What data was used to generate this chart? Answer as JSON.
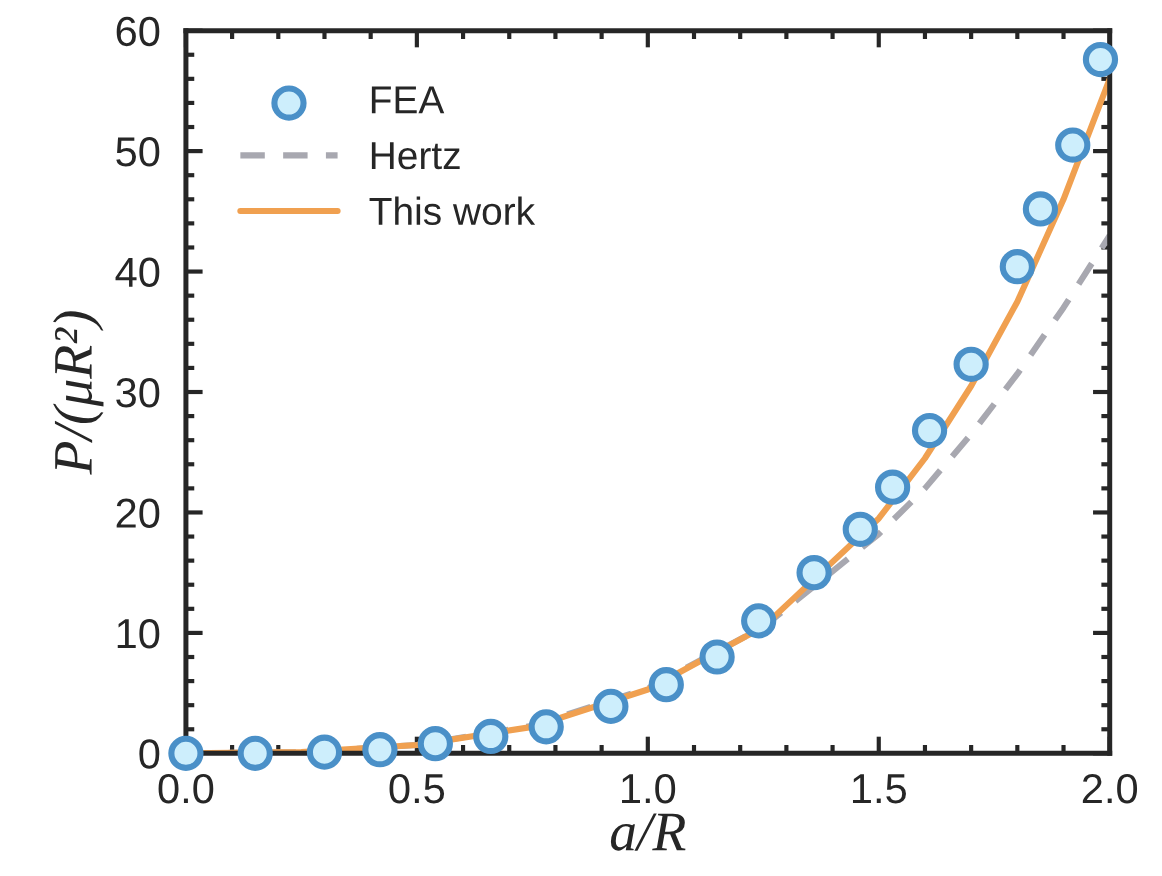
{
  "chart_data": {
    "type": "line",
    "xlabel": "a/R",
    "ylabel": "P/(μR²)",
    "xlim": [
      0,
      2
    ],
    "ylim": [
      0,
      60
    ],
    "xticks": [
      {
        "value": 0,
        "label": "0.0"
      },
      0.5,
      {
        "value": 1,
        "label": "1.0"
      },
      1.5,
      {
        "value": 2,
        "label": "2.0"
      }
    ],
    "yticks": [
      0,
      10,
      20,
      30,
      40,
      50,
      60
    ],
    "grid": false,
    "legend": "top left",
    "series": [
      {
        "name": "FEA",
        "type": "scatter",
        "marker": "circle",
        "color": "#4a90c8",
        "x": [
          0,
          0.15,
          0.3,
          0.42,
          0.54,
          0.66,
          0.78,
          0.92,
          1.04,
          1.15,
          1.24,
          1.36,
          1.46,
          1.53,
          1.61,
          1.7,
          1.8,
          1.85,
          1.92,
          1.98
        ],
        "values": [
          0,
          0,
          0.1,
          0.3,
          0.8,
          1.4,
          2.2,
          3.9,
          5.7,
          8.0,
          11,
          15,
          18.6,
          22.1,
          26.8,
          32.3,
          40.4,
          45.2,
          50.5,
          57.6
        ]
      },
      {
        "name": "Hertz",
        "line_style": "dashed",
        "color": "#a8a8b0",
        "x": [
          0,
          0.25,
          0.5,
          0.75,
          1.0,
          1.25,
          1.5,
          1.6,
          1.7,
          1.8,
          1.9,
          2.0
        ],
        "values": [
          0,
          0.1,
          0.7,
          2.3,
          5.4,
          10.5,
          18.2,
          22,
          26.5,
          31.5,
          37,
          43
        ]
      },
      {
        "name": "This work",
        "line_style": "solid",
        "color": "#f0a050",
        "x": [
          0,
          0.25,
          0.5,
          0.75,
          1.0,
          1.25,
          1.5,
          1.6,
          1.7,
          1.8,
          1.9,
          2.0
        ],
        "values": [
          0,
          0.1,
          0.7,
          2.2,
          5.3,
          10.5,
          19.5,
          24.5,
          30.5,
          37.5,
          46,
          56
        ]
      }
    ]
  }
}
